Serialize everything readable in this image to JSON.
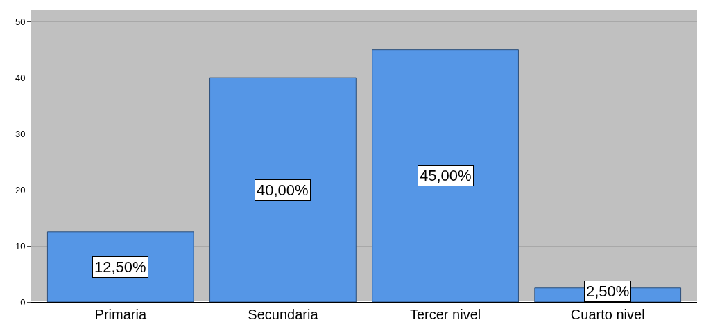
{
  "chart_data": {
    "type": "bar",
    "categories": [
      "Primaria",
      "Secundaria",
      "Tercer nivel",
      "Cuarto nivel"
    ],
    "values": [
      12.5,
      40,
      45,
      2.5
    ],
    "value_labels": [
      "12,50%",
      "40,00%",
      "45,00%",
      "2,50%"
    ],
    "color": "#5596e6",
    "ylim": [
      0,
      52
    ],
    "yticks": [
      0,
      10,
      20,
      30,
      40,
      50
    ],
    "grid": "y",
    "legend": false
  }
}
